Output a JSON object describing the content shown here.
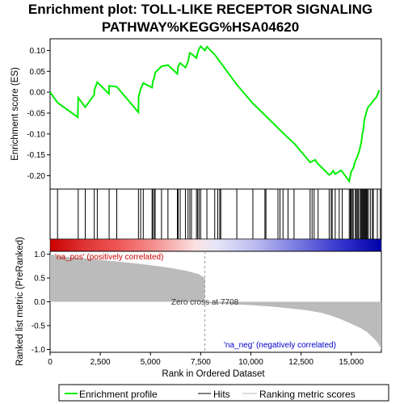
{
  "chart_data": {
    "type": "line",
    "title_lines": [
      "Enrichment plot: TOLL-LIKE RECEPTOR SIGNALING",
      "PATHWAY%KEGG%HSA04620"
    ],
    "colors": {
      "enrichment": "#00ee00",
      "hits": "#000000",
      "metric_fill": "#bbbbbb",
      "pos_label": "#cc0000",
      "neg_label": "#0000cc",
      "zero_line": "#999999"
    },
    "top_panel": {
      "ylabel": "Enrichment score (ES)",
      "ylim": [
        -0.232,
        0.128
      ],
      "yticks": [
        0.1,
        0.05,
        0.0,
        -0.05,
        -0.1,
        -0.15,
        -0.2
      ],
      "ytick_labels": [
        "0.10",
        "0.05",
        "0.00",
        "-0.05",
        "-0.10",
        "-0.15",
        "-0.20"
      ],
      "grid": false,
      "x": [
        0,
        370,
        1380,
        1400,
        1750,
        2200,
        2205,
        2350,
        2930,
        2940,
        3320,
        4400,
        4410,
        4510,
        4640,
        5080,
        5120,
        5200,
        5230,
        5550,
        5870,
        6340,
        6380,
        6480,
        6740,
        6870,
        6960,
        7040,
        7290,
        7350,
        7420,
        7500,
        7710,
        7810,
        8200,
        9300,
        10100,
        10700,
        11400,
        11650,
        12200,
        12950,
        13200,
        13350,
        13900,
        14000,
        14100,
        14200,
        14500,
        14900,
        15000,
        15100,
        15200,
        15300,
        15400,
        15500,
        15550,
        15600,
        15650,
        15700,
        15750,
        15800,
        15850,
        15950,
        16100,
        16250,
        16400
      ],
      "es": [
        0.0,
        -0.025,
        -0.06,
        -0.013,
        -0.036,
        -0.006,
        0.005,
        0.024,
        -0.004,
        0.015,
        0.013,
        -0.048,
        -0.01,
        0.008,
        0.022,
        0.011,
        0.026,
        0.036,
        0.047,
        0.062,
        0.065,
        0.044,
        0.062,
        0.07,
        0.059,
        0.073,
        0.094,
        0.092,
        0.082,
        0.094,
        0.104,
        0.11,
        0.1,
        0.109,
        0.09,
        0.018,
        -0.027,
        -0.055,
        -0.088,
        -0.1,
        -0.125,
        -0.168,
        -0.162,
        -0.172,
        -0.198,
        -0.195,
        -0.188,
        -0.196,
        -0.187,
        -0.213,
        -0.19,
        -0.182,
        -0.165,
        -0.155,
        -0.14,
        -0.12,
        -0.1,
        -0.09,
        -0.066,
        -0.058,
        -0.048,
        -0.04,
        -0.035,
        -0.03,
        -0.02,
        -0.012,
        0.005
      ]
    },
    "hits_x": [
      370,
      1400,
      1750,
      2200,
      2350,
      2940,
      3320,
      4400,
      4510,
      4640,
      5080,
      5120,
      5200,
      5230,
      5550,
      5870,
      6340,
      6380,
      6480,
      6740,
      6870,
      6960,
      7040,
      7290,
      7350,
      7420,
      7500,
      7810,
      8200,
      8350,
      8450,
      8500,
      9300,
      10100,
      10700,
      10750,
      11350,
      11450,
      11600,
      11850,
      12150,
      12950,
      13050,
      13150,
      13350,
      13900,
      14000,
      14050,
      14200,
      14400,
      14550,
      14900,
      14950,
      15000,
      15050,
      15100,
      15200,
      15250,
      15300,
      15350,
      15420,
      15480,
      15520,
      15560,
      15600,
      15640,
      15680,
      15720,
      15760,
      15800,
      15850,
      15950,
      16050,
      16100,
      16300,
      16450
    ],
    "ranked_panel": {
      "ylabel": "Ranked list metric (PreRanked)",
      "ylim": [
        -1.06,
        1.06
      ],
      "yticks": [
        1.0,
        0.5,
        0.0,
        -0.5,
        -1.0
      ],
      "ytick_labels": [
        "1.0",
        "0.5",
        "0.0",
        "-0.5",
        "-1.0"
      ],
      "x": [
        0,
        400,
        1200,
        2000,
        3000,
        4000,
        5000,
        6000,
        6800,
        7400,
        7708,
        7709,
        8500,
        10000,
        11000,
        12000,
        12800,
        13500,
        14000,
        14500,
        15000,
        15500,
        15800,
        16000,
        16200,
        16350,
        16500
      ],
      "values": [
        1.0,
        0.96,
        0.93,
        0.9,
        0.86,
        0.82,
        0.77,
        0.71,
        0.65,
        0.58,
        0.5,
        -0.02,
        -0.04,
        -0.07,
        -0.1,
        -0.14,
        -0.18,
        -0.23,
        -0.29,
        -0.37,
        -0.46,
        -0.56,
        -0.64,
        -0.72,
        -0.8,
        -0.88,
        -1.0
      ],
      "zero_cross_label": "Zero cross at 7708",
      "zero_cross": 7708,
      "pos_label": "'na_pos' (positively correlated)",
      "neg_label": "'na_neg' (negatively correlated)"
    },
    "xaxis": {
      "label": "Rank in Ordered Dataset",
      "xlim": [
        0,
        16500
      ],
      "ticks": [
        0,
        2500,
        5000,
        7500,
        10000,
        12500,
        15000
      ],
      "tick_labels": [
        "0",
        "2,500",
        "5,000",
        "7,500",
        "10,000",
        "12,500",
        "15,000"
      ]
    },
    "heat_band": {
      "stops": [
        "#cc0000",
        "#dd3333",
        "#ee5555",
        "#f48888",
        "#f8bbbb",
        "#fbe2e2",
        "#e6e6f8",
        "#bbbbf0",
        "#7777e0",
        "#3333cc",
        "#0000aa"
      ],
      "stop_positions": [
        0.0,
        0.1,
        0.2,
        0.3,
        0.38,
        0.44,
        0.5,
        0.62,
        0.75,
        0.88,
        1.0
      ]
    },
    "legend": {
      "entries": [
        {
          "label": "Enrichment profile",
          "color": "#00ee00",
          "style": "line"
        },
        {
          "label": "Hits",
          "color": "#000000",
          "style": "line"
        },
        {
          "label": "Ranking metric scores",
          "color": "#bbbbbb",
          "style": "line"
        }
      ]
    }
  }
}
